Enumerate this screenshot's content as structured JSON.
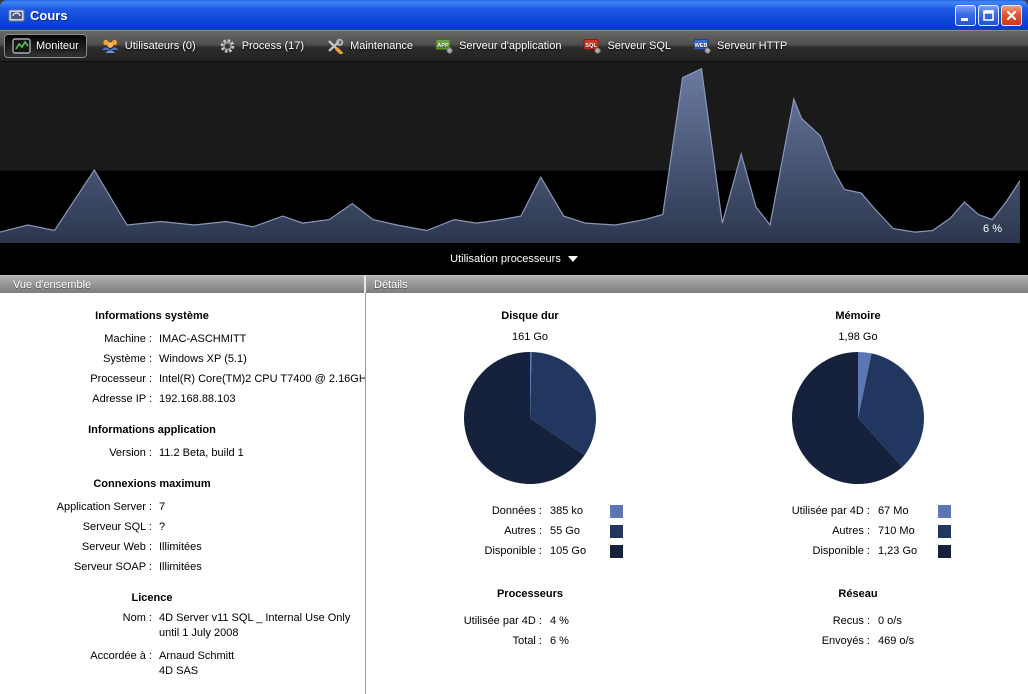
{
  "window": {
    "title": "Cours"
  },
  "toolbar": {
    "items": [
      {
        "label": "Moniteur"
      },
      {
        "label": "Utilisateurs (0)"
      },
      {
        "label": "Process (17)"
      },
      {
        "label": "Maintenance"
      },
      {
        "label": "Serveur d'application",
        "badge": "APP"
      },
      {
        "label": "Serveur SQL",
        "badge": "SQL"
      },
      {
        "label": "Serveur HTTP",
        "badge": "WEB"
      }
    ]
  },
  "graph": {
    "current_value_label": "6 %",
    "selector_label": "Utilisation processeurs"
  },
  "overview": {
    "header": "Vue d'ensemble",
    "sections": [
      {
        "title": "Informations système",
        "rows": [
          {
            "label": "Machine :",
            "value": "IMAC-ASCHMITT"
          },
          {
            "label": "Système :",
            "value": "Windows XP (5.1)"
          },
          {
            "label": "Processeur :",
            "value": "Intel(R) Core(TM)2 CPU T7400 @ 2.16GH"
          },
          {
            "label": "Adresse IP :",
            "value": "192.168.88.103"
          }
        ]
      },
      {
        "title": "Informations application",
        "rows": [
          {
            "label": "Version :",
            "value": "11.2 Beta, build 1"
          }
        ]
      },
      {
        "title": "Connexions maximum",
        "rows": [
          {
            "label": "Application Server :",
            "value": "7"
          },
          {
            "label": "Serveur SQL :",
            "value": "?"
          },
          {
            "label": "Serveur Web :",
            "value": "Illimitées"
          },
          {
            "label": "Serveur SOAP :",
            "value": "Illimitées"
          }
        ]
      },
      {
        "title": "Licence",
        "rows": [
          {
            "label": "Nom :",
            "value": "4D Server v11 SQL _ Internal Use Only\nuntil 1 July 2008"
          },
          {
            "label": "Accordée à :",
            "value": "Arnaud Schmitt\n4D SAS"
          }
        ]
      }
    ]
  },
  "details": {
    "header": "Détails",
    "disk": {
      "title": "Disque dur",
      "total": "161 Go",
      "legend": [
        {
          "label": "Données :",
          "value": "385 ko",
          "color": "#5c77b4"
        },
        {
          "label": "Autres :",
          "value": "55 Go",
          "color": "#223760"
        },
        {
          "label": "Disponible :",
          "value": "105 Go",
          "color": "#16213c"
        }
      ]
    },
    "memory": {
      "title": "Mémoire",
      "total": "1,98 Go",
      "legend": [
        {
          "label": "Utilisée par 4D :",
          "value": "67 Mo",
          "color": "#5c77b4"
        },
        {
          "label": "Autres :",
          "value": "710 Mo",
          "color": "#223760"
        },
        {
          "label": "Disponible :",
          "value": "1,23 Go",
          "color": "#16213c"
        }
      ]
    },
    "processors": {
      "title": "Processeurs",
      "rows": [
        {
          "label": "Utilisée par 4D :",
          "value": "4 %"
        },
        {
          "label": "Total :",
          "value": "6 %"
        }
      ]
    },
    "network": {
      "title": "Réseau",
      "rows": [
        {
          "label": "Recus :",
          "value": "0 o/s"
        },
        {
          "label": "Envoyés :",
          "value": "469 o/s"
        }
      ]
    }
  },
  "chart_data": [
    {
      "type": "area",
      "title": "Utilisation processeurs",
      "unit": "%",
      "current_value": 6,
      "ylim": [
        0,
        56
      ],
      "legend_position": "none",
      "grid": false,
      "colors": {
        "fill_top": "#6b7aa1",
        "fill_bottom": "#2c374e",
        "edge": "#8removed",
        "edge_line": "#8a97bb",
        "bg_upper": "#1a1a1a",
        "bg_lower": "#000000"
      },
      "points": [
        [
          0,
          2.8
        ],
        [
          28,
          5
        ],
        [
          55,
          3.3
        ],
        [
          95,
          22.2
        ],
        [
          128,
          5
        ],
        [
          162,
          6.1
        ],
        [
          196,
          5
        ],
        [
          228,
          6.1
        ],
        [
          255,
          4.4
        ],
        [
          285,
          7.8
        ],
        [
          305,
          5.6
        ],
        [
          332,
          6.7
        ],
        [
          355,
          11.7
        ],
        [
          376,
          6.7
        ],
        [
          400,
          5
        ],
        [
          430,
          3.3
        ],
        [
          458,
          6.7
        ],
        [
          480,
          5.6
        ],
        [
          505,
          6.7
        ],
        [
          525,
          7.8
        ],
        [
          545,
          20
        ],
        [
          568,
          7.8
        ],
        [
          590,
          5.6
        ],
        [
          620,
          5
        ],
        [
          650,
          6.7
        ],
        [
          668,
          8.3
        ],
        [
          688,
          51.1
        ],
        [
          707,
          53.9
        ],
        [
          728,
          5.6
        ],
        [
          747,
          27.2
        ],
        [
          762,
          10.6
        ],
        [
          776,
          5
        ],
        [
          800,
          44.4
        ],
        [
          808,
          38.3
        ],
        [
          827,
          32.8
        ],
        [
          840,
          22.2
        ],
        [
          851,
          16.1
        ],
        [
          868,
          15
        ],
        [
          880,
          10.6
        ],
        [
          900,
          3.9
        ],
        [
          922,
          2.8
        ],
        [
          940,
          3.3
        ],
        [
          958,
          7.2
        ],
        [
          972,
          12.2
        ],
        [
          986,
          8.3
        ],
        [
          1000,
          6.7
        ],
        [
          1014,
          12.2
        ],
        [
          1028,
          18.9
        ]
      ]
    },
    {
      "type": "pie",
      "title": "Disque dur",
      "total_label": "161 Go",
      "slices": [
        {
          "label": "Données",
          "value_label": "385 ko",
          "fraction": 0.004,
          "color": "#5c77b4"
        },
        {
          "label": "Autres",
          "value_label": "55 Go",
          "fraction": 0.341,
          "color": "#223760"
        },
        {
          "label": "Disponible",
          "value_label": "105 Go",
          "fraction": 0.655,
          "color": "#16213c"
        }
      ]
    },
    {
      "type": "pie",
      "title": "Mémoire",
      "total_label": "1,98 Go",
      "slices": [
        {
          "label": "Utilisée par 4D",
          "value_label": "67 Mo",
          "fraction": 0.033,
          "color": "#5c77b4"
        },
        {
          "label": "Autres",
          "value_label": "710 Mo",
          "fraction": 0.35,
          "color": "#223760"
        },
        {
          "label": "Disponible",
          "value_label": "1,23 Go",
          "fraction": 0.617,
          "color": "#16213c"
        }
      ]
    }
  ]
}
